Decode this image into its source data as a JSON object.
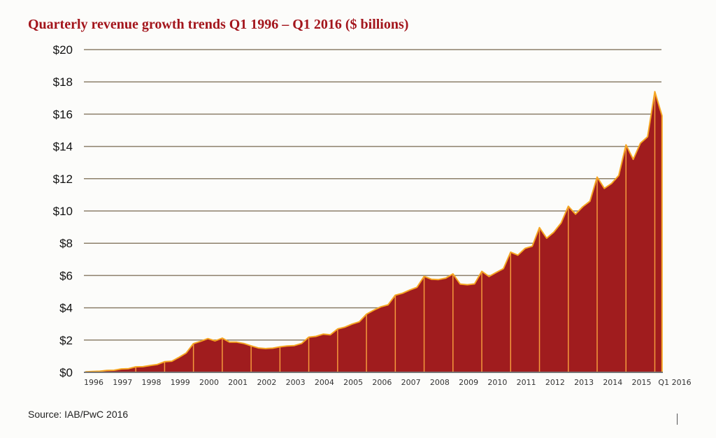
{
  "chart_data": {
    "type": "area",
    "title": "Quarterly revenue growth trends Q1 1996 – Q1 2016 ($ billions)",
    "source": "Source: IAB/PwC 2016",
    "xlabel": "",
    "ylabel": "",
    "ylim": [
      0,
      20
    ],
    "yticks": [
      0,
      2,
      4,
      6,
      8,
      10,
      12,
      14,
      16,
      18,
      20
    ],
    "ytick_labels": [
      "$0",
      "$2",
      "$4",
      "$6",
      "$8",
      "$10",
      "$12",
      "$14",
      "$16",
      "$18",
      "$20"
    ],
    "xtick_labels": [
      "1996",
      "1997",
      "1998",
      "1999",
      "2000",
      "2001",
      "2002",
      "2003",
      "2004",
      "2005",
      "2006",
      "2007",
      "2008",
      "2009",
      "2010",
      "2011",
      "2012",
      "2013",
      "2014",
      "2015",
      "Q1 2016"
    ],
    "grid": true,
    "colors": {
      "fill": "#a01c1e",
      "line": "#f5a623",
      "quarter_marker": "#f59a3c",
      "grid": "#8c7f6a",
      "title": "#a3151c"
    },
    "x_start": "Q1 1996",
    "x_end": "Q1 2016",
    "values": [
      0.03,
      0.05,
      0.07,
      0.12,
      0.13,
      0.21,
      0.23,
      0.34,
      0.35,
      0.42,
      0.49,
      0.66,
      0.69,
      0.93,
      1.2,
      1.78,
      1.92,
      2.09,
      1.95,
      2.12,
      1.87,
      1.87,
      1.79,
      1.64,
      1.51,
      1.47,
      1.5,
      1.58,
      1.63,
      1.66,
      1.79,
      2.18,
      2.23,
      2.37,
      2.33,
      2.69,
      2.8,
      2.99,
      3.13,
      3.6,
      3.85,
      4.06,
      4.18,
      4.78,
      4.9,
      5.1,
      5.27,
      5.95,
      5.77,
      5.75,
      5.84,
      6.1,
      5.47,
      5.43,
      5.48,
      6.26,
      5.94,
      6.19,
      6.43,
      7.45,
      7.26,
      7.68,
      7.82,
      8.97,
      8.31,
      8.69,
      9.26,
      10.29,
      9.8,
      10.26,
      10.6,
      12.1,
      11.4,
      11.7,
      12.2,
      14.1,
      13.2,
      14.2,
      14.6,
      17.4,
      15.9
    ]
  }
}
